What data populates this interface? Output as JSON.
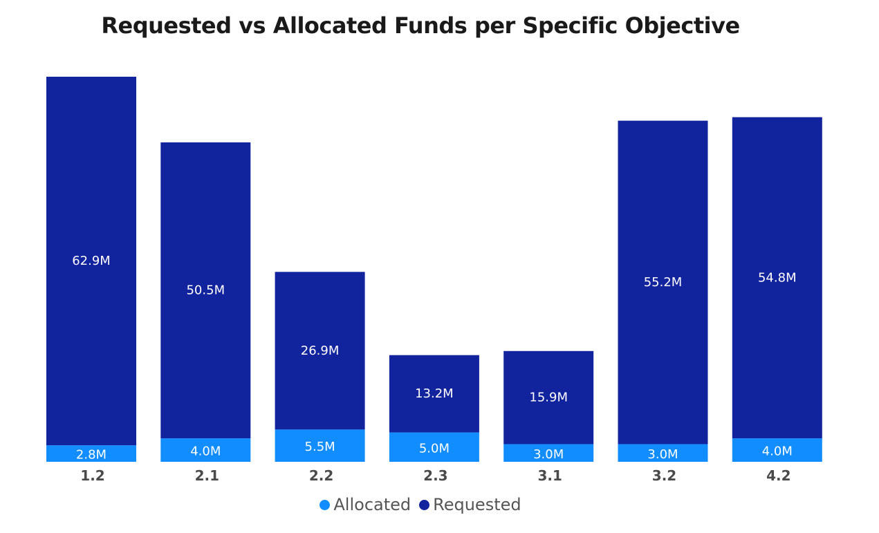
{
  "chart_data": {
    "type": "bar",
    "stacked": true,
    "title": "Requested vs Allocated Funds per Specific Objective",
    "xlabel": "",
    "ylabel": "",
    "ylim": [
      0,
      66
    ],
    "categories": [
      "1.2",
      "2.1",
      "2.2",
      "2.3",
      "3.1",
      "3.2",
      "4.2"
    ],
    "series": [
      {
        "name": "Allocated",
        "color": "#118dff",
        "values": [
          2.8,
          4.0,
          5.5,
          5.0,
          3.0,
          3.0,
          4.0
        ],
        "labels": [
          "2.8M",
          "4.0M",
          "5.5M",
          "5.0M",
          "3.0M",
          "3.0M",
          "4.0M"
        ]
      },
      {
        "name": "Requested",
        "color": "#12239e",
        "values": [
          62.9,
          50.5,
          26.9,
          13.2,
          15.9,
          55.2,
          54.8
        ],
        "labels": [
          "62.9M",
          "50.5M",
          "26.9M",
          "13.2M",
          "15.9M",
          "55.2M",
          "54.8M"
        ]
      }
    ],
    "legend_position": "bottom-center",
    "grid": false
  }
}
